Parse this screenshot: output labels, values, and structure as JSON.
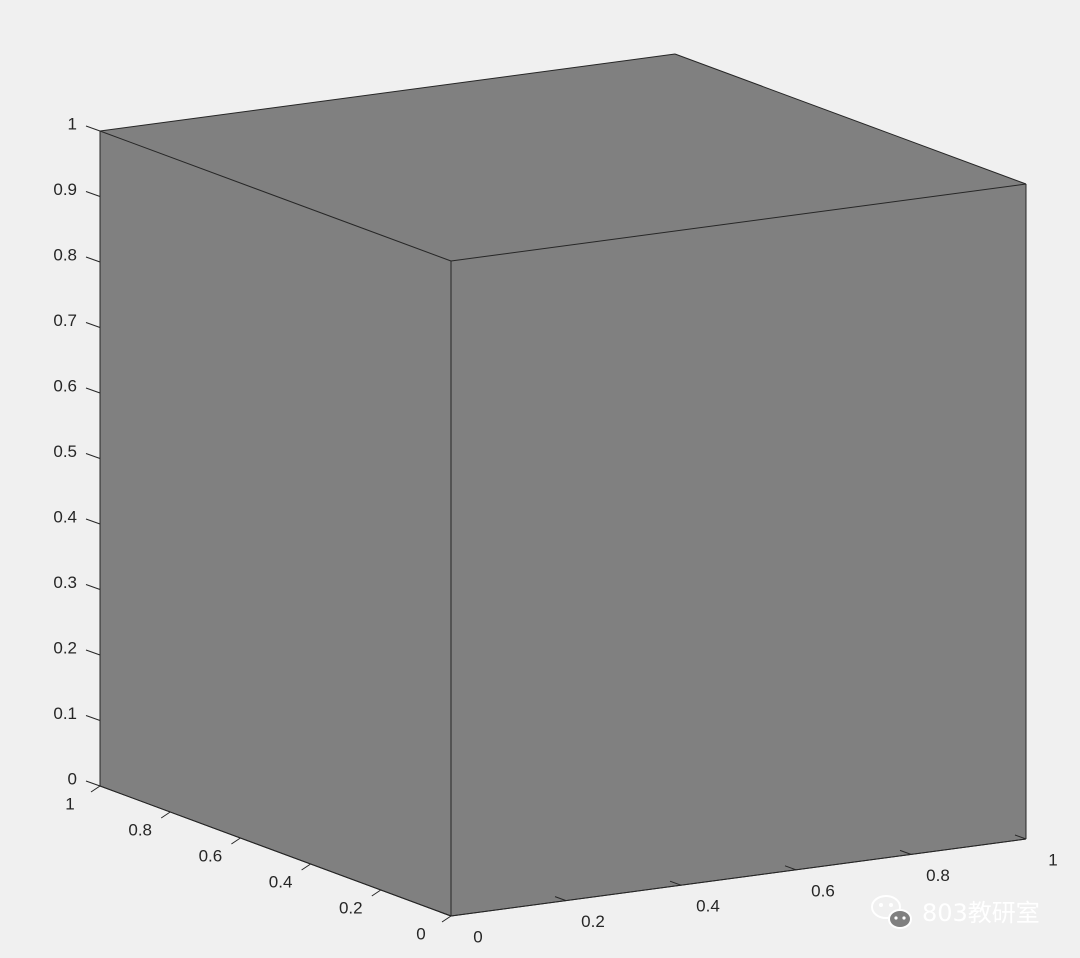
{
  "chart_data": {
    "type": "3d-surface",
    "title": "",
    "xlabel": "",
    "ylabel": "",
    "zlabel": "",
    "shape": "unit cube",
    "face_color": "#808080",
    "edge_color": "#262626",
    "xlim": [
      0,
      1
    ],
    "ylim": [
      0,
      1
    ],
    "zlim": [
      0,
      1
    ],
    "vertices": [
      [
        0,
        0,
        0
      ],
      [
        1,
        0,
        0
      ],
      [
        1,
        1,
        0
      ],
      [
        0,
        1,
        0
      ],
      [
        0,
        0,
        1
      ],
      [
        1,
        0,
        1
      ],
      [
        1,
        1,
        1
      ],
      [
        0,
        1,
        1
      ]
    ],
    "x_ticks": [
      0,
      0.2,
      0.4,
      0.6,
      0.8,
      1
    ],
    "x_tick_labels": [
      "0",
      "0.2",
      "0.4",
      "0.6",
      "0.8",
      "1"
    ],
    "y_ticks": [
      0,
      0.2,
      0.4,
      0.6,
      0.8,
      1
    ],
    "y_tick_labels": [
      "0",
      "0.2",
      "0.4",
      "0.6",
      "0.8",
      "1"
    ],
    "z_ticks": [
      0,
      0.1,
      0.2,
      0.3,
      0.4,
      0.5,
      0.6,
      0.7,
      0.8,
      0.9,
      1
    ],
    "z_tick_labels": [
      "0",
      "0.1",
      "0.2",
      "0.3",
      "0.4",
      "0.5",
      "0.6",
      "0.7",
      "0.8",
      "0.9",
      "1"
    ],
    "grid": false
  },
  "watermark": {
    "text": "803教研室",
    "icon": "wechat-icon"
  }
}
